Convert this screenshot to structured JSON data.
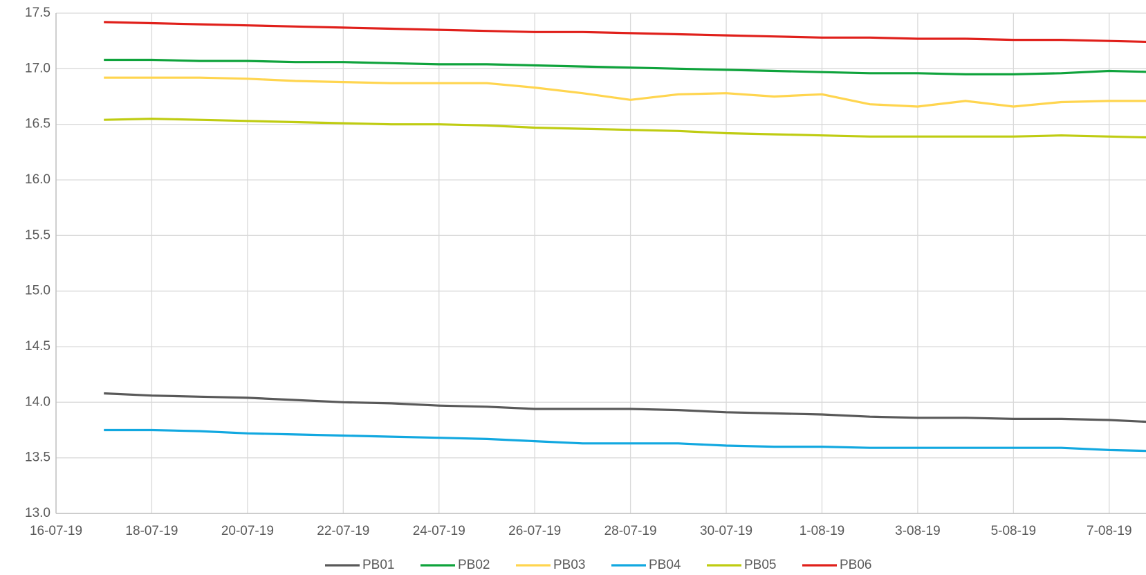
{
  "chart_data": {
    "type": "line",
    "x": [
      "17-07-19",
      "18-07-19",
      "19-07-19",
      "20-07-19",
      "21-07-19",
      "22-07-19",
      "23-07-19",
      "24-07-19",
      "25-07-19",
      "26-07-19",
      "27-07-19",
      "28-07-19",
      "29-07-19",
      "30-07-19",
      "31-07-19",
      "1-08-19",
      "2-08-19",
      "3-08-19",
      "4-08-19",
      "5-08-19",
      "6-08-19",
      "7-08-19",
      "8-08-19"
    ],
    "series": [
      {
        "name": "PB01",
        "color": "#595959",
        "values": [
          14.08,
          14.06,
          14.05,
          14.04,
          14.02,
          14.0,
          13.99,
          13.97,
          13.96,
          13.94,
          13.94,
          13.94,
          13.93,
          13.91,
          13.9,
          13.89,
          13.87,
          13.86,
          13.86,
          13.85,
          13.85,
          13.84,
          13.82
        ]
      },
      {
        "name": "PB02",
        "color": "#0fa33c",
        "values": [
          17.08,
          17.08,
          17.07,
          17.07,
          17.06,
          17.06,
          17.05,
          17.04,
          17.04,
          17.03,
          17.02,
          17.01,
          17.0,
          16.99,
          16.98,
          16.97,
          16.96,
          16.96,
          16.95,
          16.95,
          16.96,
          16.98,
          16.97
        ]
      },
      {
        "name": "PB03",
        "color": "#ffd54f",
        "values": [
          16.92,
          16.92,
          16.92,
          16.91,
          16.89,
          16.88,
          16.87,
          16.87,
          16.87,
          16.83,
          16.78,
          16.72,
          16.77,
          16.78,
          16.75,
          16.77,
          16.68,
          16.66,
          16.71,
          16.66,
          16.7,
          16.71,
          16.71
        ]
      },
      {
        "name": "PB04",
        "color": "#12a8e0",
        "values": [
          13.75,
          13.75,
          13.74,
          13.72,
          13.71,
          13.7,
          13.69,
          13.68,
          13.67,
          13.65,
          13.63,
          13.63,
          13.63,
          13.61,
          13.6,
          13.6,
          13.59,
          13.59,
          13.59,
          13.59,
          13.59,
          13.57,
          13.56
        ]
      },
      {
        "name": "PB05",
        "color": "#bfcc12",
        "values": [
          16.54,
          16.55,
          16.54,
          16.53,
          16.52,
          16.51,
          16.5,
          16.5,
          16.49,
          16.47,
          16.46,
          16.45,
          16.44,
          16.42,
          16.41,
          16.4,
          16.39,
          16.39,
          16.39,
          16.39,
          16.4,
          16.39,
          16.38
        ]
      },
      {
        "name": "PB06",
        "color": "#e0201b",
        "values": [
          17.42,
          17.41,
          17.4,
          17.39,
          17.38,
          17.37,
          17.36,
          17.35,
          17.34,
          17.33,
          17.33,
          17.32,
          17.31,
          17.3,
          17.29,
          17.28,
          17.28,
          17.27,
          17.27,
          17.26,
          17.26,
          17.25,
          17.24
        ]
      }
    ],
    "xlim": [
      "16-07-19",
      "8-08-19"
    ],
    "xticks": [
      "16-07-19",
      "18-07-19",
      "20-07-19",
      "22-07-19",
      "24-07-19",
      "26-07-19",
      "28-07-19",
      "30-07-19",
      "1-08-19",
      "3-08-19",
      "5-08-19",
      "7-08-19"
    ],
    "ylim": [
      13,
      17.5
    ],
    "yticks": [
      {
        "value": 13,
        "label": "13.0"
      },
      13.5,
      {
        "value": 14,
        "label": "14.0"
      },
      14.5,
      {
        "value": 15,
        "label": "15.0"
      },
      15.5,
      {
        "value": 16,
        "label": "16.0"
      },
      16.5,
      {
        "value": 17,
        "label": "17.0"
      },
      17.5
    ],
    "grid": true,
    "legend": "bottom"
  }
}
